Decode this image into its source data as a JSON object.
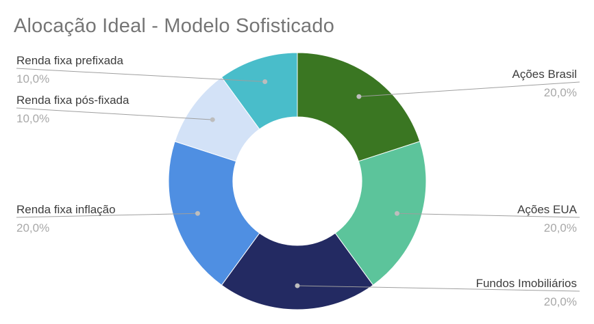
{
  "chart_data": {
    "type": "pie",
    "title": "Alocação Ideal - Modelo Sofisticado",
    "donut": true,
    "categories": [
      "Ações Brasil",
      "Ações EUA",
      "Fundos Imobiliários",
      "Renda fixa inflação",
      "Renda fixa pós-fixada",
      "Renda fixa prefixada"
    ],
    "values": [
      20,
      20,
      20,
      20,
      10,
      10
    ],
    "value_labels": [
      "20,0%",
      "20,0%",
      "20,0%",
      "20,0%",
      "10,0%",
      "10,0%"
    ],
    "colors": [
      "#3a7622",
      "#5cc49b",
      "#232a62",
      "#4f8fe2",
      "#d3e2f7",
      "#49bdca"
    ],
    "legend": "none"
  }
}
